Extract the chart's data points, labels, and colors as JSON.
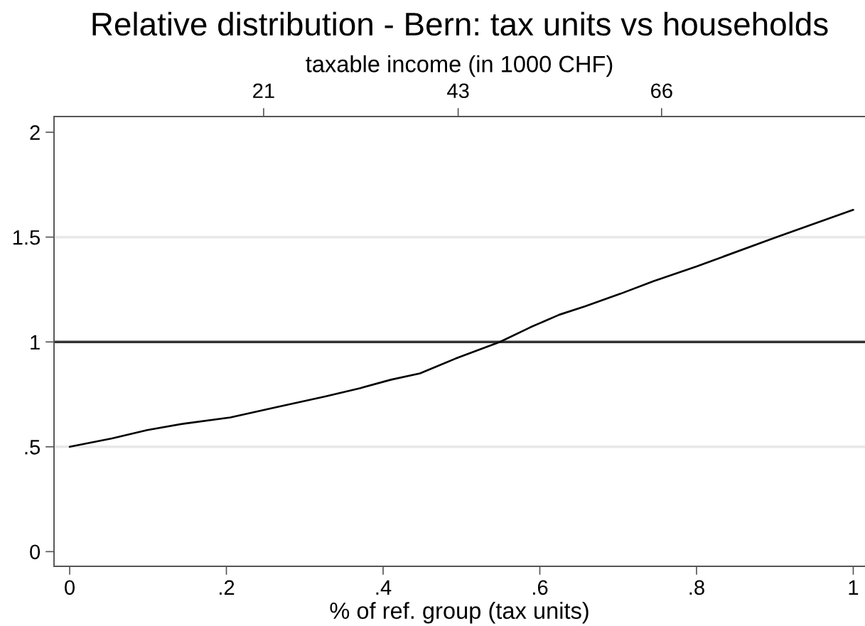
{
  "chart_data": {
    "type": "line",
    "title": "Relative distribution - Bern: tax units vs households",
    "xlabel": "% of ref. group (tax units)",
    "x2label": "taxable income (in 1000 CHF)",
    "x": [
      0,
      0.054,
      0.099,
      0.145,
      0.205,
      0.265,
      0.326,
      0.371,
      0.41,
      0.447,
      0.492,
      0.549,
      0.588,
      0.625,
      0.658,
      0.703,
      0.745,
      0.8,
      0.902,
      1
    ],
    "series": [
      {
        "color": "#000000",
        "values": [
          0.5,
          0.54,
          0.58,
          0.61,
          0.64,
          0.69,
          0.74,
          0.78,
          0.82,
          0.85,
          0.92,
          1.0,
          1.07,
          1.13,
          1.17,
          1.23,
          1.29,
          1.36,
          1.5,
          1.63
        ]
      }
    ],
    "xlim": [
      -0.02,
      1.015
    ],
    "xticks": [
      0,
      {
        "value": 0.2,
        "label": ".2"
      },
      {
        "value": 0.4,
        "label": ".4"
      },
      {
        "value": 0.6,
        "label": ".6"
      },
      {
        "value": 0.8,
        "label": ".8"
      },
      1
    ],
    "x2lim": [
      -2.7,
      89
    ],
    "x2ticks": [
      21,
      43,
      66
    ],
    "ylim": [
      -0.07,
      2.075
    ],
    "yticks": [
      0,
      {
        "value": 0.5,
        "label": ".5"
      },
      1,
      {
        "value": 1.5,
        "label": "1.5"
      },
      2
    ],
    "ref_lines": [
      {
        "axis": "y",
        "value": 1,
        "color": "#333333"
      }
    ],
    "grid": "y",
    "line_style": "solid"
  }
}
